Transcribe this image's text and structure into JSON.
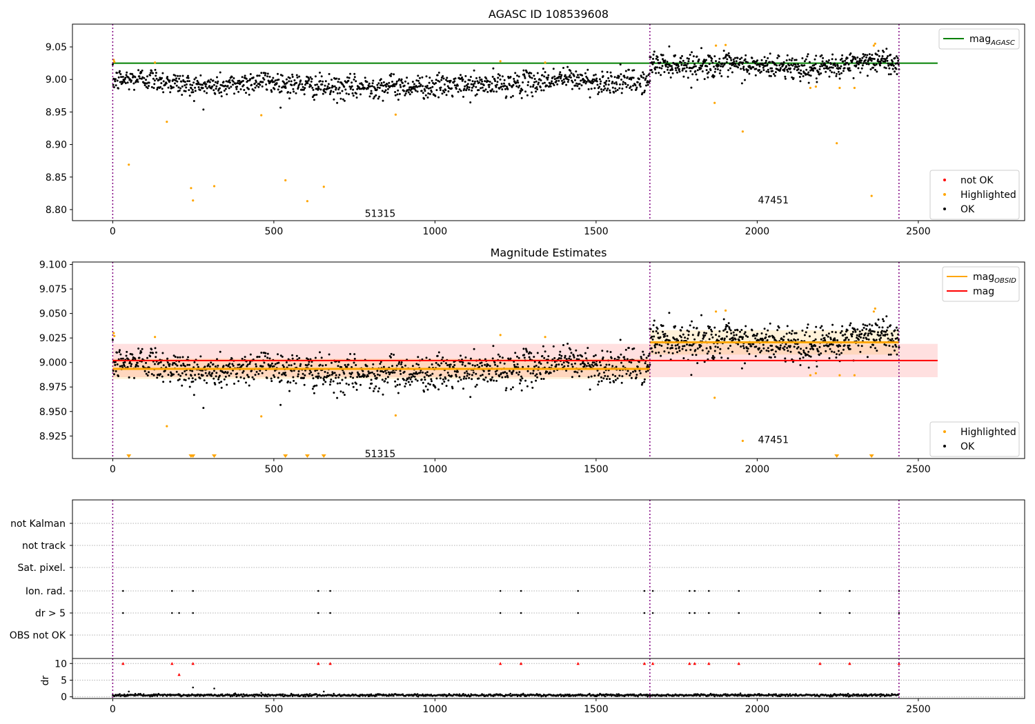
{
  "chart_data": [
    {
      "type": "scatter",
      "title": "AGASC ID 108539608",
      "xlim": [
        -125,
        2830
      ],
      "ylim": [
        8.783,
        9.085
      ],
      "xticks": [
        0,
        500,
        1000,
        1500,
        2000,
        2500
      ],
      "yticks": [
        8.8,
        8.85,
        8.9,
        8.95,
        9.0,
        9.05
      ],
      "xtick_labels": [
        "0",
        "500",
        "1000",
        "1500",
        "2000",
        "2500"
      ],
      "ytick_labels": [
        "8.80",
        "8.85",
        "8.90",
        "8.95",
        "9.00",
        "9.05"
      ],
      "obsid_boundaries": [
        0,
        1667,
        2440
      ],
      "obsid_labels": [
        {
          "text": "51315",
          "x": 830,
          "y": 8.794
        },
        {
          "text": "47451",
          "x": 2050,
          "y": 8.815
        }
      ],
      "agasc_mag": 9.025,
      "agasc_x": [
        0,
        2560
      ],
      "legend_top": [
        {
          "label": "mag",
          "sub": "AGASC",
          "color": "#008000",
          "kind": "line"
        }
      ],
      "legend_bottom": [
        {
          "label": "not OK",
          "color": "#ff0000",
          "kind": "dot"
        },
        {
          "label": "Highlighted",
          "color": "#ffa500",
          "kind": "dot"
        },
        {
          "label": "OK",
          "color": "#000000",
          "kind": "dot"
        }
      ],
      "ok_segments": [
        {
          "x0": 0,
          "x1": 1667,
          "n": 1150,
          "means": [
            [
              0,
              8.998
            ],
            [
              100,
              9.002
            ],
            [
              250,
              8.99
            ],
            [
              350,
              8.99
            ],
            [
              450,
              8.998
            ],
            [
              550,
              8.993
            ],
            [
              700,
              8.986
            ],
            [
              830,
              8.99
            ],
            [
              1000,
              8.989
            ],
            [
              1200,
              8.992
            ],
            [
              1300,
              8.995
            ],
            [
              1400,
              9.002
            ],
            [
              1500,
              8.996
            ],
            [
              1667,
              8.996
            ]
          ],
          "sd": 0.009
        },
        {
          "x0": 1667,
          "x1": 2440,
          "n": 620,
          "means": [
            [
              1667,
              9.025
            ],
            [
              1800,
              9.022
            ],
            [
              1900,
              9.022
            ],
            [
              2000,
              9.02
            ],
            [
              2100,
              9.02
            ],
            [
              2200,
              9.015
            ],
            [
              2350,
              9.03
            ],
            [
              2440,
              9.025
            ]
          ],
          "sd": 0.009
        }
      ],
      "highlighted": [
        [
          3,
          9.03
        ],
        [
          5,
          9.027
        ],
        [
          50,
          8.869
        ],
        [
          131,
          9.026
        ],
        [
          168,
          8.935
        ],
        [
          243,
          8.833
        ],
        [
          249,
          8.814
        ],
        [
          315,
          8.836
        ],
        [
          461,
          8.945
        ],
        [
          536,
          8.845
        ],
        [
          604,
          8.813
        ],
        [
          655,
          8.835
        ],
        [
          878,
          8.946
        ],
        [
          1203,
          9.028
        ],
        [
          1342,
          9.026
        ],
        [
          1868,
          8.964
        ],
        [
          1872,
          9.052
        ],
        [
          1902,
          9.053
        ],
        [
          1955,
          8.92
        ],
        [
          2165,
          8.987
        ],
        [
          2182,
          8.989
        ],
        [
          2247,
          8.902
        ],
        [
          2256,
          8.987
        ],
        [
          2302,
          8.987
        ],
        [
          2355,
          8.821
        ],
        [
          2362,
          9.052
        ],
        [
          2366,
          9.055
        ]
      ]
    },
    {
      "type": "scatter",
      "title": "Magnitude Estimates",
      "xlim": [
        -125,
        2830
      ],
      "ylim": [
        8.902,
        9.1025
      ],
      "xticks": [
        0,
        500,
        1000,
        1500,
        2000,
        2500
      ],
      "yticks": [
        8.925,
        8.95,
        8.975,
        9.0,
        9.025,
        9.05,
        9.075,
        9.1
      ],
      "xtick_labels": [
        "0",
        "500",
        "1000",
        "1500",
        "2000",
        "2500"
      ],
      "ytick_labels": [
        "8.925",
        "8.950",
        "8.975",
        "9.000",
        "9.025",
        "9.050",
        "9.075",
        "9.100"
      ],
      "obsid_boundaries": [
        0,
        1667,
        2440
      ],
      "obsid_labels": [
        {
          "text": "51315",
          "x": 830,
          "y": 8.907
        },
        {
          "text": "47451",
          "x": 2050,
          "y": 8.9215
        }
      ],
      "mag": 9.002,
      "mag_band": [
        8.985,
        9.019
      ],
      "mag_x": [
        0,
        2560
      ],
      "obsid_mags": [
        {
          "x0": 0,
          "x1": 1667,
          "mag": 8.9935,
          "band": [
            8.983,
            9.004
          ]
        },
        {
          "x0": 1667,
          "x1": 2440,
          "mag": 9.0205,
          "band": [
            9.008,
            9.033
          ]
        }
      ],
      "legend_top": [
        {
          "label": "mag",
          "sub": "OBSID",
          "color": "#ffa500",
          "kind": "line"
        },
        {
          "label": "mag",
          "sub": "",
          "color": "#ff0000",
          "kind": "line"
        }
      ],
      "legend_bottom": [
        {
          "label": "Highlighted",
          "color": "#ffa500",
          "kind": "dot"
        },
        {
          "label": "OK",
          "color": "#000000",
          "kind": "dot"
        }
      ],
      "ok_segments": [
        {
          "x0": 0,
          "x1": 1667,
          "n": 1150,
          "means": [
            [
              0,
              8.998
            ],
            [
              100,
              9.002
            ],
            [
              250,
              8.99
            ],
            [
              350,
              8.99
            ],
            [
              450,
              8.998
            ],
            [
              550,
              8.993
            ],
            [
              700,
              8.986
            ],
            [
              830,
              8.99
            ],
            [
              1000,
              8.989
            ],
            [
              1200,
              8.992
            ],
            [
              1300,
              8.995
            ],
            [
              1400,
              9.002
            ],
            [
              1500,
              8.996
            ],
            [
              1667,
              8.996
            ]
          ],
          "sd": 0.009
        },
        {
          "x0": 1667,
          "x1": 2440,
          "n": 620,
          "means": [
            [
              1667,
              9.025
            ],
            [
              1800,
              9.022
            ],
            [
              1900,
              9.022
            ],
            [
              2000,
              9.02
            ],
            [
              2100,
              9.02
            ],
            [
              2200,
              9.015
            ],
            [
              2350,
              9.03
            ],
            [
              2440,
              9.025
            ]
          ],
          "sd": 0.009
        }
      ],
      "highlighted": [
        [
          3,
          9.03
        ],
        [
          5,
          9.027
        ],
        [
          131,
          9.026
        ],
        [
          168,
          8.935
        ],
        [
          461,
          8.945
        ],
        [
          878,
          8.946
        ],
        [
          1203,
          9.028
        ],
        [
          1342,
          9.026
        ],
        [
          1868,
          8.964
        ],
        [
          1872,
          9.052
        ],
        [
          1902,
          9.053
        ],
        [
          1955,
          8.92
        ],
        [
          2165,
          8.987
        ],
        [
          2182,
          8.989
        ],
        [
          2256,
          8.987
        ],
        [
          2302,
          8.987
        ],
        [
          2362,
          9.052
        ],
        [
          2366,
          9.055
        ]
      ],
      "off_scale_low": [
        50,
        243,
        249,
        315,
        536,
        604,
        655,
        2247,
        2355
      ]
    },
    {
      "type": "scatter",
      "title": "",
      "xlim": [
        -125,
        2830
      ],
      "xticks": [
        0,
        500,
        1000,
        1500,
        2000,
        2500
      ],
      "xtick_labels": [
        "0",
        "500",
        "1000",
        "1500",
        "2000",
        "2500"
      ],
      "obsid_boundaries": [
        0,
        1667,
        2440
      ],
      "flag_rows": [
        "not Kalman",
        "not track",
        "Sat. pixel.",
        "Ion. rad.",
        "dr > 5",
        "OBS not OK"
      ],
      "flag_points": {
        "Ion. rad.": [
          32,
          184,
          249,
          638,
          675,
          1203,
          1267,
          1444,
          1650,
          1676,
          1790,
          1806,
          1850,
          1943,
          2195,
          2287,
          2440
        ],
        "dr > 5": [
          32,
          184,
          206,
          249,
          638,
          675,
          1203,
          1267,
          1444,
          1650,
          1676,
          1790,
          1806,
          1850,
          1943,
          2195,
          2287,
          2440
        ]
      },
      "dr_ylabel": "dr",
      "dr_ylim": [
        -0.5,
        11.5
      ],
      "dr_yticks": [
        0,
        5,
        10
      ],
      "dr_ytick_labels": [
        "0",
        "5",
        "10"
      ],
      "dr_high": [
        [
          32,
          10
        ],
        [
          184,
          10
        ],
        [
          249,
          10
        ],
        [
          638,
          10
        ],
        [
          675,
          10
        ],
        [
          1203,
          10
        ],
        [
          1267,
          10
        ],
        [
          1444,
          10
        ],
        [
          1650,
          10
        ],
        [
          1676,
          10
        ],
        [
          1790,
          10
        ],
        [
          1806,
          10
        ],
        [
          1850,
          10
        ],
        [
          1943,
          10
        ],
        [
          2195,
          10
        ],
        [
          2287,
          10
        ],
        [
          2440,
          10
        ],
        [
          206,
          6.7
        ]
      ],
      "dr_isolated": [
        [
          50,
          1.6
        ],
        [
          249,
          2.8
        ],
        [
          315,
          2.5
        ],
        [
          461,
          1.2
        ],
        [
          655,
          1.6
        ]
      ],
      "dr_baseline": {
        "x0": 0,
        "x1": 2440,
        "mean": 0.5,
        "sd": 0.3
      }
    }
  ]
}
